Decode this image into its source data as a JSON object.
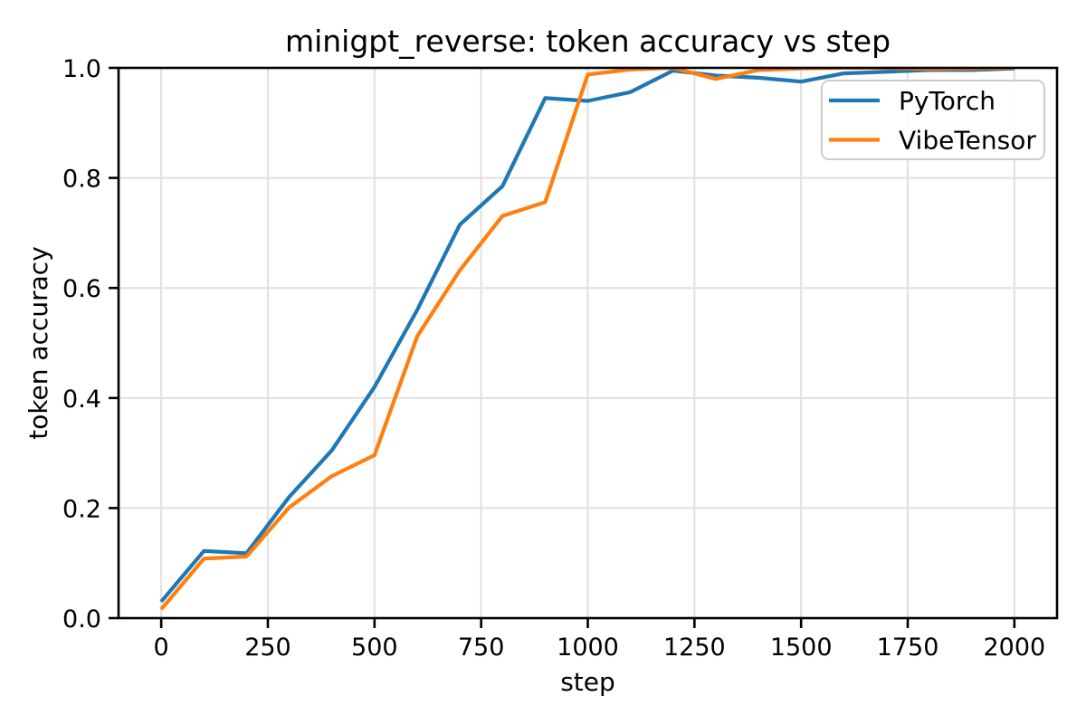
{
  "window": {
    "background": "#ffffff"
  },
  "chart_data": {
    "type": "line",
    "title": "minigpt_reverse: token accuracy vs step",
    "xlabel": "step",
    "ylabel": "token accuracy",
    "x": [
      0,
      100,
      200,
      300,
      400,
      500,
      600,
      700,
      800,
      900,
      1000,
      1100,
      1200,
      1300,
      1400,
      1500,
      1600,
      1700,
      1800,
      1900,
      2000
    ],
    "series": [
      {
        "name": "PyTorch",
        "color": "#1f77b4",
        "values": [
          0.03,
          0.122,
          0.118,
          0.22,
          0.305,
          0.42,
          0.56,
          0.715,
          0.785,
          0.945,
          0.94,
          0.956,
          0.995,
          0.986,
          0.982,
          0.975,
          0.99,
          0.993,
          0.996,
          0.996,
          0.999
        ]
      },
      {
        "name": "VibeTensor",
        "color": "#ff7f0e",
        "values": [
          0.016,
          0.108,
          0.112,
          0.201,
          0.258,
          0.296,
          0.512,
          0.632,
          0.731,
          0.756,
          0.988,
          0.997,
          1.0,
          0.98,
          0.996,
          0.999,
          1.0,
          1.0,
          0.998,
          0.999,
          1.0
        ]
      }
    ],
    "xlim": [
      -100,
      2100
    ],
    "ylim": [
      0.0,
      1.0
    ],
    "xticks": [
      "0",
      "250",
      "500",
      "750",
      "1000",
      "1250",
      "1500",
      "1750",
      "2000"
    ],
    "yticks": [
      "0.0",
      "0.2",
      "0.4",
      "0.6",
      "0.8",
      "1.0"
    ],
    "grid": true,
    "legend": {
      "position": "upper right",
      "entries": [
        "PyTorch",
        "VibeTensor"
      ]
    },
    "colors": {
      "grid": "#e0e0e0",
      "axes": "#000000",
      "text": "#000000",
      "legend_border": "#cccccc",
      "legend_fill": "#ffffff"
    }
  }
}
